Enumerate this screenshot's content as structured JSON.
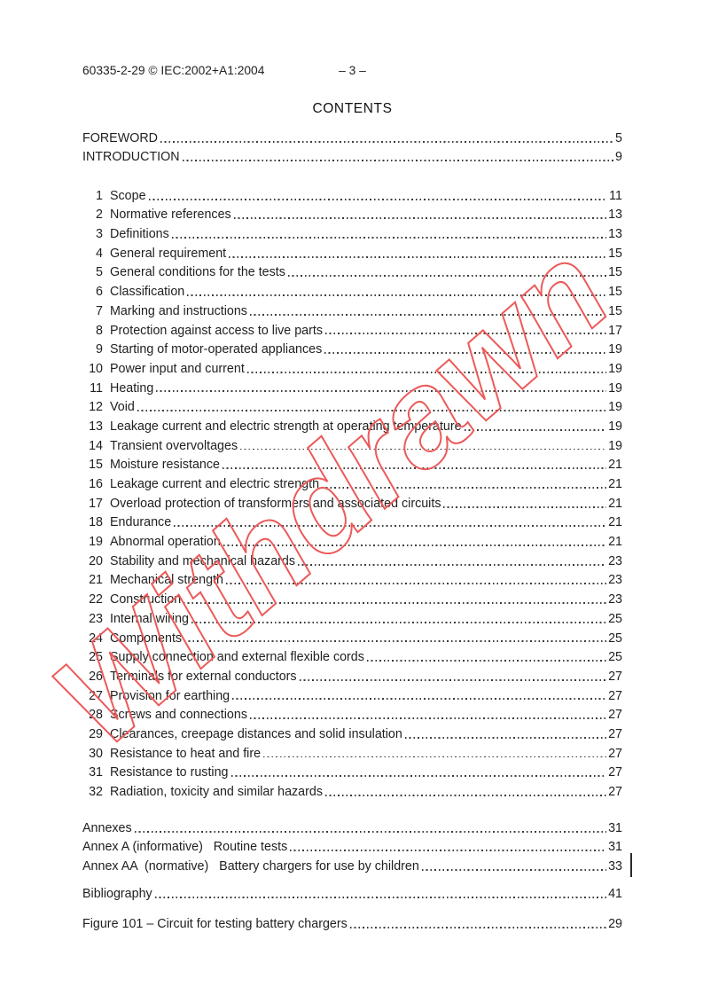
{
  "header": {
    "doc_ref": "60335-2-29 © IEC:2002+A1:2004",
    "page_marker": "– 3 –"
  },
  "title": "CONTENTS",
  "watermark": {
    "text": "Withdrawn",
    "color": "#ec5a5a"
  },
  "front_entries": [
    {
      "label": "FOREWORD",
      "page": "5"
    },
    {
      "label": "INTRODUCTION",
      "page": "9"
    }
  ],
  "clauses": [
    {
      "num": "1",
      "label": "Scope",
      "page": "11"
    },
    {
      "num": "2",
      "label": "Normative references",
      "page": "13"
    },
    {
      "num": "3",
      "label": "Definitions",
      "page": "13"
    },
    {
      "num": "4",
      "label": "General requirement",
      "page": "15"
    },
    {
      "num": "5",
      "label": "General conditions for the tests",
      "page": "15"
    },
    {
      "num": "6",
      "label": "Classification",
      "page": "15"
    },
    {
      "num": "7",
      "label": "Marking and instructions",
      "page": "15"
    },
    {
      "num": "8",
      "label": "Protection against access to live parts",
      "page": "17"
    },
    {
      "num": "9",
      "label": "Starting of motor-operated appliances",
      "page": "19"
    },
    {
      "num": "10",
      "label": "Power input and current",
      "page": "19"
    },
    {
      "num": "11",
      "label": "Heating",
      "page": "19"
    },
    {
      "num": "12",
      "label": "Void",
      "page": "19"
    },
    {
      "num": "13",
      "label": "Leakage current and electric strength at operating temperature",
      "page": "19"
    },
    {
      "num": "14",
      "label": "Transient overvoltages",
      "page": "19"
    },
    {
      "num": "15",
      "label": "Moisture resistance",
      "page": "21"
    },
    {
      "num": "16",
      "label": "Leakage current and electric strength",
      "page": "21"
    },
    {
      "num": "17",
      "label": "Overload protection of transformers and associated circuits",
      "page": "21"
    },
    {
      "num": "18",
      "label": "Endurance",
      "page": "21"
    },
    {
      "num": "19",
      "label": "Abnormal operation",
      "page": "21"
    },
    {
      "num": "20",
      "label": "Stability and mechanical hazards",
      "page": "23"
    },
    {
      "num": "21",
      "label": "Mechanical strength",
      "page": "23"
    },
    {
      "num": "22",
      "label": "Construction",
      "page": "23"
    },
    {
      "num": "23",
      "label": "Internal wiring",
      "page": "25"
    },
    {
      "num": "24",
      "label": "Components",
      "page": "25"
    },
    {
      "num": "25",
      "label": "Supply connection and external flexible cords",
      "page": "25"
    },
    {
      "num": "26",
      "label": "Terminals for external conductors",
      "page": "27"
    },
    {
      "num": "27",
      "label": "Provision for earthing",
      "page": "27"
    },
    {
      "num": "28",
      "label": "Screws and connections",
      "page": "27"
    },
    {
      "num": "29",
      "label": "Clearances, creepage distances and solid insulation",
      "page": "27"
    },
    {
      "num": "30",
      "label": "Resistance to heat and fire",
      "page": "27"
    },
    {
      "num": "31",
      "label": "Resistance to rusting",
      "page": "27"
    },
    {
      "num": "32",
      "label": "Radiation, toxicity and similar hazards",
      "page": "27"
    }
  ],
  "annex_entries": [
    {
      "label": "Annexes",
      "page": "31"
    },
    {
      "label": "Annex A (informative)   Routine tests",
      "page": "31"
    },
    {
      "label": "Annex AA  (normative)   Battery chargers for use by children",
      "page": "33"
    }
  ],
  "bibliography": {
    "label": "Bibliography",
    "page": "41"
  },
  "figure_entries": [
    {
      "label": "Figure 101 – Circuit for testing battery chargers",
      "page": "29"
    }
  ]
}
